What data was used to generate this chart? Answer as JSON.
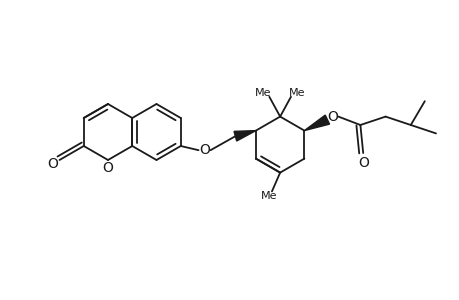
{
  "bg_color": "#ffffff",
  "line_color": "#1a1a1a",
  "bond_lw": 1.3,
  "figsize": [
    4.6,
    3.0
  ],
  "dpi": 100,
  "xlim": [
    0,
    460
  ],
  "ylim": [
    0,
    300
  ]
}
